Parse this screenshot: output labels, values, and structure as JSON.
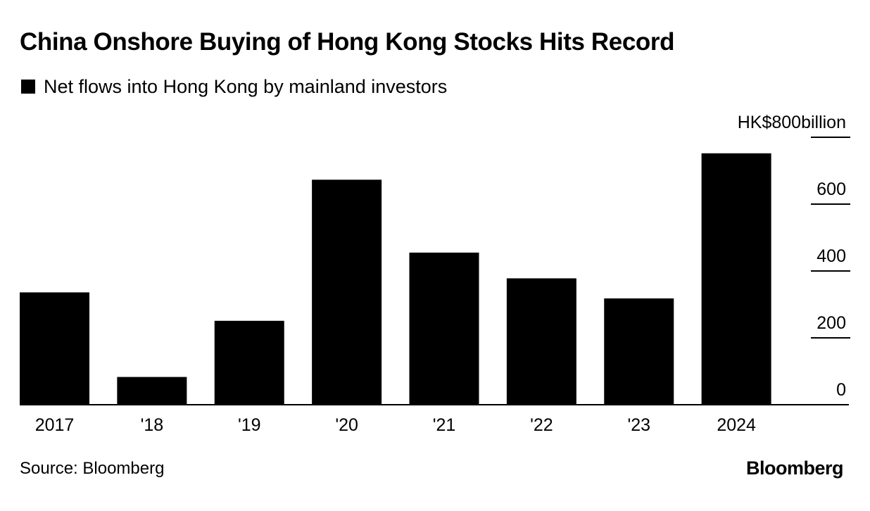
{
  "header": {
    "title": "China Onshore Buying of Hong Kong Stocks Hits Record"
  },
  "legend": {
    "label": "Net flows into Hong Kong by mainland investors"
  },
  "footer": {
    "source": "Source: Bloomberg",
    "brand": "Bloomberg"
  },
  "colors": {
    "bar": "#000000",
    "axis": "#000000",
    "text": "#000000",
    "background": "#ffffff"
  },
  "chart_data": {
    "type": "bar",
    "title": "China Onshore Buying of Hong Kong Stocks Hits Record",
    "xlabel": "",
    "ylabel": "",
    "categories": [
      "2017",
      "'18",
      "'19",
      "'20",
      "'21",
      "'22",
      "'23",
      "2024"
    ],
    "series": [
      {
        "name": "Net flows into Hong Kong by mainland investors",
        "values": [
          336,
          83,
          251,
          673,
          455,
          378,
          318,
          752
        ]
      }
    ],
    "ylim": [
      0,
      800
    ],
    "yticks": [
      0,
      200,
      400,
      600,
      800
    ],
    "ytick_labels": [
      "0",
      "200",
      "400",
      "600",
      "HK$800billion"
    ],
    "y_axis_side": "right",
    "grid": false,
    "legend_position": "top-left"
  }
}
